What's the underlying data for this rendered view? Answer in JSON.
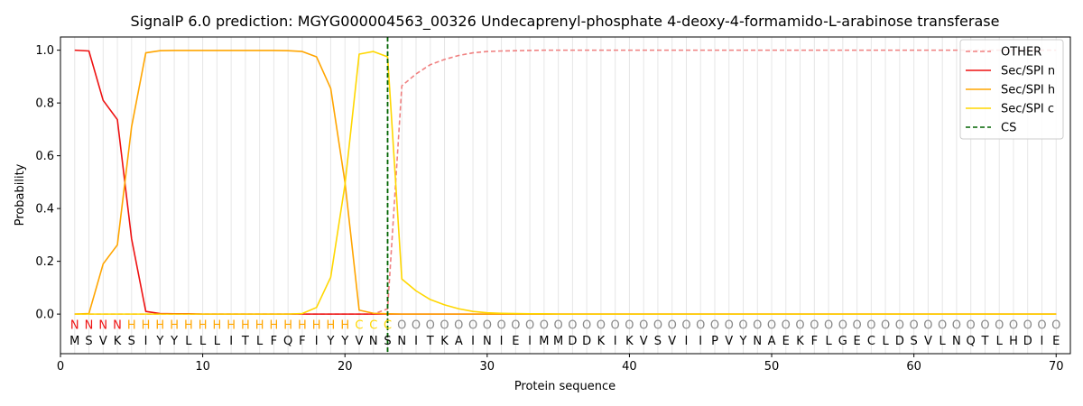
{
  "chart_data": {
    "type": "line",
    "title": "SignalP 6.0 prediction: MGYG000004563_00326 Undecaprenyl-phosphate 4-deoxy-4-formamido-L-arabinose transferase",
    "xlabel": "Protein sequence",
    "ylabel": "Probability",
    "xlim": [
      0,
      71
    ],
    "ylim": [
      -0.15,
      1.05
    ],
    "xticks": [
      0,
      10,
      20,
      30,
      40,
      50,
      60,
      70
    ],
    "yticks": [
      0.0,
      0.2,
      0.4,
      0.6,
      0.8,
      1.0
    ],
    "ytick_labels": [
      "0.0",
      "0.2",
      "0.4",
      "0.6",
      "0.8",
      "1.0"
    ],
    "grid": "vertical lines at each residue",
    "legend_position": "top-right",
    "sequence": [
      "M",
      "S",
      "V",
      "K",
      "S",
      "I",
      "Y",
      "Y",
      "L",
      "L",
      "L",
      "I",
      "T",
      "L",
      "F",
      "Q",
      "F",
      "I",
      "Y",
      "Y",
      "V",
      "N",
      "S",
      "N",
      "I",
      "T",
      "K",
      "A",
      "I",
      "N",
      "I",
      "E",
      "I",
      "M",
      "M",
      "D",
      "D",
      "K",
      "I",
      "K",
      "V",
      "S",
      "V",
      "I",
      "I",
      "P",
      "V",
      "Y",
      "N",
      "A",
      "E",
      "K",
      "F",
      "L",
      "G",
      "E",
      "C",
      "L",
      "D",
      "S",
      "V",
      "L",
      "N",
      "Q",
      "T",
      "L",
      "H",
      "D",
      "I",
      "E"
    ],
    "regions": [
      "N",
      "N",
      "N",
      "N",
      "H",
      "H",
      "H",
      "H",
      "H",
      "H",
      "H",
      "H",
      "H",
      "H",
      "H",
      "H",
      "H",
      "H",
      "H",
      "H",
      "C",
      "C",
      "C",
      "O",
      "O",
      "O",
      "O",
      "O",
      "O",
      "O",
      "O",
      "O",
      "O",
      "O",
      "O",
      "O",
      "O",
      "O",
      "O",
      "O",
      "O",
      "O",
      "O",
      "O",
      "O",
      "O",
      "O",
      "O",
      "O",
      "O",
      "O",
      "O",
      "O",
      "O",
      "O",
      "O",
      "O",
      "O",
      "O",
      "O",
      "O",
      "O",
      "O",
      "O",
      "O",
      "O",
      "O",
      "O",
      "O",
      "O"
    ],
    "region_colors": {
      "N": "#ee1111",
      "H": "#ffa500",
      "C": "#ffd700",
      "O": "#888888"
    },
    "series": [
      {
        "name": "OTHER",
        "color": "#f08080",
        "dash": "dashed",
        "values": [
          0.0,
          0.0,
          0.0,
          0.0,
          0.0,
          0.0,
          0.0,
          0.0,
          0.0,
          0.0,
          0.0,
          0.0,
          0.0,
          0.0,
          0.0,
          0.0,
          0.0,
          0.0,
          0.0,
          0.0,
          0.0,
          0.0,
          0.02,
          0.865,
          0.91,
          0.945,
          0.965,
          0.98,
          0.99,
          0.995,
          0.997,
          0.998,
          0.999,
          1.0,
          1.0,
          1.0,
          1.0,
          1.0,
          1.0,
          1.0,
          1.0,
          1.0,
          1.0,
          1.0,
          1.0,
          1.0,
          1.0,
          1.0,
          1.0,
          1.0,
          1.0,
          1.0,
          1.0,
          1.0,
          1.0,
          1.0,
          1.0,
          1.0,
          1.0,
          1.0,
          1.0,
          1.0,
          1.0,
          1.0,
          1.0,
          1.0,
          1.0,
          1.0,
          1.0,
          1.0
        ]
      },
      {
        "name": "Sec/SPI n",
        "color": "#ee1111",
        "dash": "solid",
        "values": [
          1.0,
          0.997,
          0.81,
          0.737,
          0.285,
          0.01,
          0.002,
          0.001,
          0.001,
          0.0,
          0.0,
          0.0,
          0.0,
          0.0,
          0.0,
          0.0,
          0.0,
          0.0,
          0.0,
          0.0,
          0.0,
          0.0,
          0.0,
          0.0,
          0.0,
          0.0,
          0.0,
          0.0,
          0.0,
          0.0,
          0.0,
          0.0,
          0.0,
          0.0,
          0.0,
          0.0,
          0.0,
          0.0,
          0.0,
          0.0,
          0.0,
          0.0,
          0.0,
          0.0,
          0.0,
          0.0,
          0.0,
          0.0,
          0.0,
          0.0,
          0.0,
          0.0,
          0.0,
          0.0,
          0.0,
          0.0,
          0.0,
          0.0,
          0.0,
          0.0,
          0.0,
          0.0,
          0.0,
          0.0,
          0.0,
          0.0,
          0.0,
          0.0,
          0.0,
          0.0
        ]
      },
      {
        "name": "Sec/SPI h",
        "color": "#ffa500",
        "dash": "solid",
        "values": [
          0.0,
          0.002,
          0.19,
          0.262,
          0.71,
          0.99,
          0.998,
          0.999,
          0.999,
          0.999,
          0.999,
          0.999,
          0.999,
          0.999,
          0.999,
          0.998,
          0.995,
          0.975,
          0.855,
          0.5,
          0.015,
          0.003,
          0.001,
          0.0,
          0.0,
          0.0,
          0.0,
          0.0,
          0.0,
          0.0,
          0.0,
          0.0,
          0.0,
          0.0,
          0.0,
          0.0,
          0.0,
          0.0,
          0.0,
          0.0,
          0.0,
          0.0,
          0.0,
          0.0,
          0.0,
          0.0,
          0.0,
          0.0,
          0.0,
          0.0,
          0.0,
          0.0,
          0.0,
          0.0,
          0.0,
          0.0,
          0.0,
          0.0,
          0.0,
          0.0,
          0.0,
          0.0,
          0.0,
          0.0,
          0.0,
          0.0,
          0.0,
          0.0,
          0.0,
          0.0
        ]
      },
      {
        "name": "Sec/SPI c",
        "color": "#ffd700",
        "dash": "solid",
        "values": [
          0.0,
          0.0,
          0.0,
          0.0,
          0.0,
          0.0,
          0.0,
          0.0,
          0.0,
          0.0,
          0.0,
          0.0,
          0.0,
          0.0,
          0.0,
          0.0,
          0.002,
          0.025,
          0.14,
          0.49,
          0.985,
          0.995,
          0.975,
          0.133,
          0.088,
          0.055,
          0.035,
          0.02,
          0.01,
          0.005,
          0.003,
          0.002,
          0.001,
          0.001,
          0.0,
          0.0,
          0.0,
          0.0,
          0.0,
          0.0,
          0.0,
          0.0,
          0.0,
          0.0,
          0.0,
          0.0,
          0.0,
          0.0,
          0.0,
          0.0,
          0.0,
          0.0,
          0.0,
          0.0,
          0.0,
          0.0,
          0.0,
          0.0,
          0.0,
          0.0,
          0.0,
          0.0,
          0.0,
          0.0,
          0.0,
          0.0,
          0.0,
          0.0,
          0.0,
          0.0
        ]
      }
    ],
    "cleavage_site": {
      "name": "CS",
      "x": 23,
      "color": "#006400",
      "dash": "dashed"
    }
  }
}
